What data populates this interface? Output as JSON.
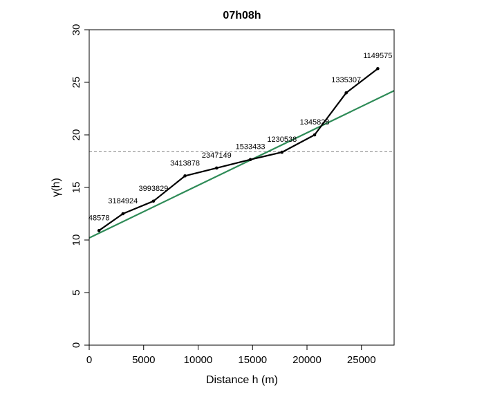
{
  "chart_data": {
    "type": "line",
    "title": "07h08h",
    "xlabel": "Distance h (m)",
    "ylabel": "γ(h)",
    "xlim": [
      0,
      28000
    ],
    "ylim": [
      0,
      30
    ],
    "x_ticks": [
      0,
      5000,
      10000,
      15000,
      20000,
      25000
    ],
    "y_ticks": [
      0,
      5,
      10,
      15,
      20,
      25,
      30
    ],
    "grid": false,
    "series": [
      {
        "color": "#000000",
        "points": [
          {
            "x": 900,
            "y": 10.9,
            "label": "48578"
          },
          {
            "x": 3100,
            "y": 12.5,
            "label": "3184924"
          },
          {
            "x": 5900,
            "y": 13.7,
            "label": "3993829"
          },
          {
            "x": 8800,
            "y": 16.1,
            "label": "3413878"
          },
          {
            "x": 11700,
            "y": 16.85,
            "label": "2347149"
          },
          {
            "x": 14800,
            "y": 17.65,
            "label": "1533433"
          },
          {
            "x": 17700,
            "y": 18.35,
            "label": "1230538"
          },
          {
            "x": 20700,
            "y": 20.0,
            "label": "1345828"
          },
          {
            "x": 23600,
            "y": 24.0,
            "label": "1335307"
          },
          {
            "x": 26500,
            "y": 26.3,
            "label": "1149575"
          }
        ]
      }
    ],
    "reference_lines": [
      {
        "kind": "horizontal",
        "y": 18.4,
        "style": "dashed",
        "color": "#808080"
      },
      {
        "kind": "linear",
        "x0": 0,
        "y0": 10.2,
        "x1": 28000,
        "y1": 24.2,
        "color": "#2e8b57"
      }
    ]
  }
}
